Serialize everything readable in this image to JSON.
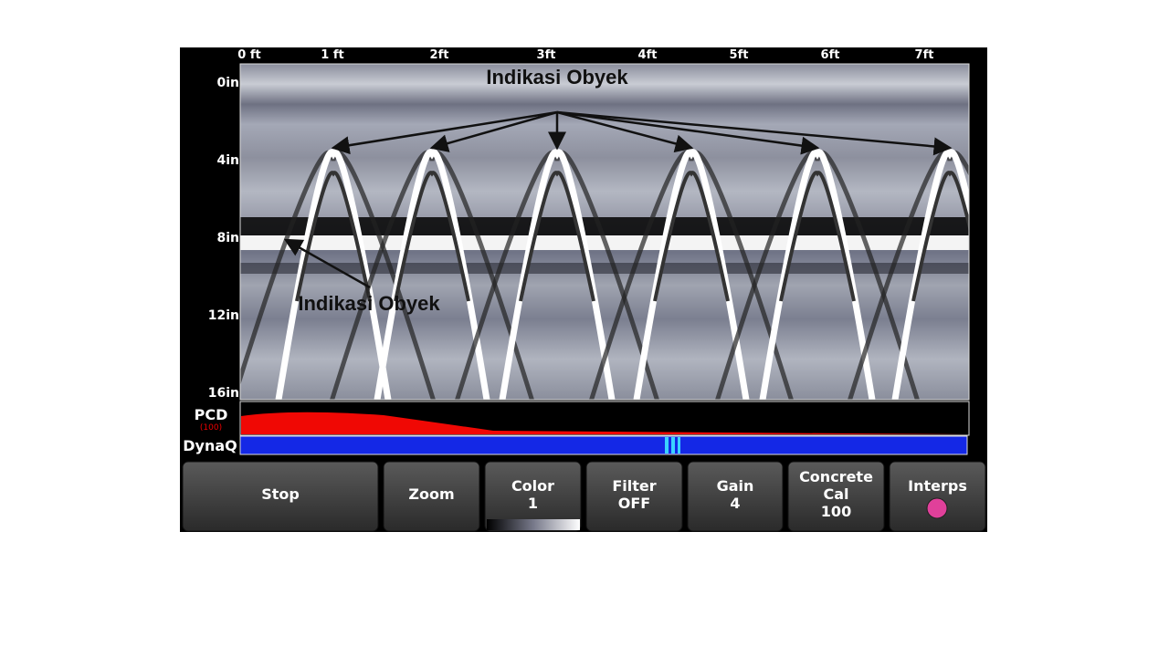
{
  "top_scale": [
    "0 ft",
    "1 ft",
    "2ft",
    "3ft",
    "4ft",
    "5ft",
    "6ft",
    "7ft"
  ],
  "depth_scale": [
    "0in",
    "4in",
    "8in",
    "12in",
    "16in"
  ],
  "annotations": [
    "Indikasi Obyek",
    "Indikasi Obyek"
  ],
  "pcd": {
    "label": "PCD",
    "sub": "(100)"
  },
  "dynaq": "DynaQ",
  "buttons": [
    {
      "lines": [
        "Stop"
      ]
    },
    {
      "lines": [
        "Zoom"
      ]
    },
    {
      "lines": [
        "Color",
        "1"
      ]
    },
    {
      "lines": [
        "Filter",
        "OFF"
      ]
    },
    {
      "lines": [
        "Gain",
        "4"
      ]
    },
    {
      "lines": [
        "Concrete",
        "Cal",
        "100"
      ]
    },
    {
      "lines": [
        "Interps"
      ]
    }
  ]
}
